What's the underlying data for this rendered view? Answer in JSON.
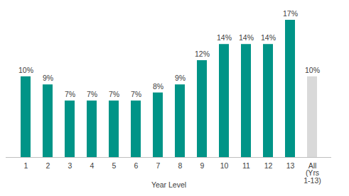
{
  "chart_data": {
    "type": "bar",
    "x_label": "Year Level",
    "categories": [
      "1",
      "2",
      "3",
      "4",
      "5",
      "6",
      "7",
      "8",
      "9",
      "10",
      "11",
      "12",
      "13",
      "All (Yrs 1-13)"
    ],
    "values": [
      10,
      9,
      7,
      7,
      7,
      7,
      8,
      9,
      12,
      14,
      14,
      14,
      17,
      10
    ],
    "value_labels": [
      "10%",
      "9%",
      "7%",
      "7%",
      "7%",
      "7%",
      "8%",
      "9%",
      "12%",
      "14%",
      "14%",
      "14%",
      "17%",
      "10%"
    ],
    "colors": [
      "#009487",
      "#009487",
      "#009487",
      "#009487",
      "#009487",
      "#009487",
      "#009487",
      "#009487",
      "#009487",
      "#009487",
      "#009487",
      "#009487",
      "#009487",
      "#d9d9d9"
    ],
    "ylim": [
      0,
      17
    ],
    "data_labels": true,
    "tick_labels": "x",
    "grid": false
  }
}
